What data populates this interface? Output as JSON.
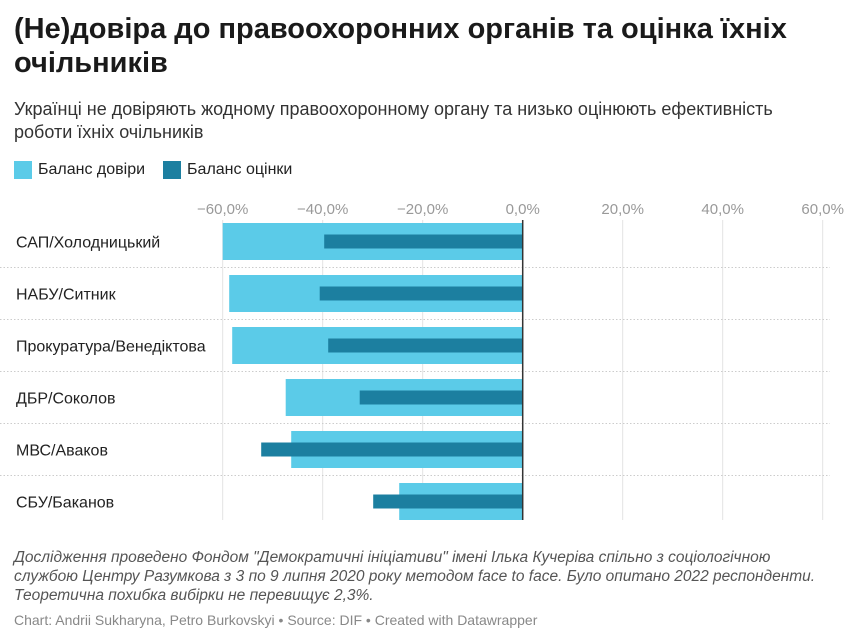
{
  "title": "(Не)довіра до правоохоронних органів та оцінка їхніх очільників",
  "subtitle": "Українці не довіряють жодному правоохоронному органу та низько оцінюють ефективність роботи їхніх очільників",
  "notes": "Дослідження проведено Фондом \"Демократичні ініціативи\" імені Ілька Кучеріва спільно з соціологічною службою Центру Разумкова з 3 по 9 липня 2020 року методом face to face. Було опитано 2022 респонденти. Теоретична похибка вибірки не перевищує 2,3%.",
  "credit": "Chart: Andrii Sukharyna, Petro Burkovskyi • Source: DIF • Created with Datawrapper",
  "chart_data": {
    "type": "bar",
    "orientation": "horizontal",
    "categories": [
      "САП/Холодницький",
      "НАБУ/Ситник",
      "Прокуратура/Венедіктова",
      "ДБР/Соколов",
      "МВС/Аваков",
      "СБУ/Баканов"
    ],
    "series": [
      {
        "name": "Баланс довіри",
        "color": "#5bcbe8",
        "values": [
          -60.0,
          -58.7,
          -58.1,
          -47.4,
          -46.3,
          -24.7
        ]
      },
      {
        "name": "Баланс оцінки",
        "color": "#1c7fa0",
        "values": [
          -39.7,
          -40.6,
          -38.9,
          -32.6,
          -52.3,
          -29.9
        ]
      }
    ],
    "xlim": [
      -60,
      60
    ],
    "xticks": [
      -60,
      -40,
      -20,
      0,
      20,
      40,
      60
    ],
    "xtick_labels": [
      "−60,0%",
      "−40,0%",
      "−20,0%",
      "0,0%",
      "20,0%",
      "40,0%",
      "60,0%"
    ],
    "grid": true,
    "legend_position": "top-left"
  }
}
